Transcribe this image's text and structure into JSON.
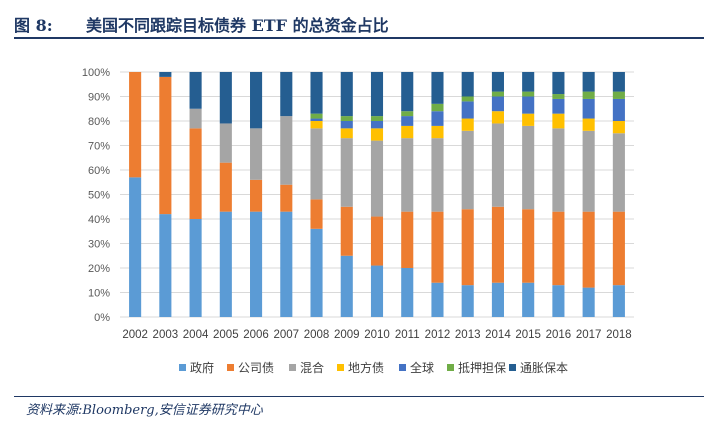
{
  "header": {
    "prefix": "图 8:",
    "title": "美国不同跟踪目标债券 ETF 的总资金占比"
  },
  "source": "资料来源:Bloomberg,安信证券研究中心",
  "chart_data": {
    "type": "bar",
    "stacked": true,
    "title": "",
    "xlabel": "",
    "ylabel": "",
    "ylim": [
      0,
      100
    ],
    "y_ticks": [
      "0%",
      "10%",
      "20%",
      "30%",
      "40%",
      "50%",
      "60%",
      "70%",
      "80%",
      "90%",
      "100%"
    ],
    "grid": true,
    "legend_position": "bottom",
    "categories": [
      "2002",
      "2003",
      "2004",
      "2005",
      "2006",
      "2007",
      "2008",
      "2009",
      "2010",
      "2011",
      "2012",
      "2013",
      "2014",
      "2015",
      "2016",
      "2017",
      "2018"
    ],
    "series": [
      {
        "name": "政府",
        "color": "#5b9bd5",
        "values": [
          57,
          42,
          40,
          43,
          43,
          43,
          36,
          25,
          21,
          20,
          14,
          13,
          14,
          14,
          13,
          12,
          13
        ]
      },
      {
        "name": "公司债",
        "color": "#ed7d31",
        "values": [
          43,
          56,
          37,
          20,
          13,
          11,
          12,
          20,
          20,
          23,
          29,
          31,
          31,
          30,
          30,
          31,
          30
        ]
      },
      {
        "name": "混合",
        "color": "#a5a5a5",
        "values": [
          0,
          0,
          8,
          16,
          21,
          28,
          29,
          28,
          31,
          30,
          30,
          32,
          34,
          34,
          34,
          33,
          32
        ]
      },
      {
        "name": "地方债",
        "color": "#ffc000",
        "values": [
          0,
          0,
          0,
          0,
          0,
          0,
          3,
          4,
          5,
          5,
          5,
          5,
          5,
          5,
          6,
          5,
          5
        ]
      },
      {
        "name": "全球",
        "color": "#4472c4",
        "values": [
          0,
          0,
          0,
          0,
          0,
          0,
          1,
          3,
          3,
          4,
          6,
          7,
          6,
          7,
          6,
          8,
          9
        ]
      },
      {
        "name": "抵押担保",
        "color": "#70ad47",
        "values": [
          0,
          0,
          0,
          0,
          0,
          0,
          2,
          2,
          2,
          2,
          3,
          2,
          2,
          2,
          2,
          3,
          3
        ]
      },
      {
        "name": "通胀保本",
        "color": "#255e91",
        "values": [
          0,
          2,
          15,
          21,
          23,
          18,
          17,
          18,
          18,
          16,
          13,
          10,
          8,
          8,
          9,
          8,
          8
        ]
      }
    ]
  }
}
